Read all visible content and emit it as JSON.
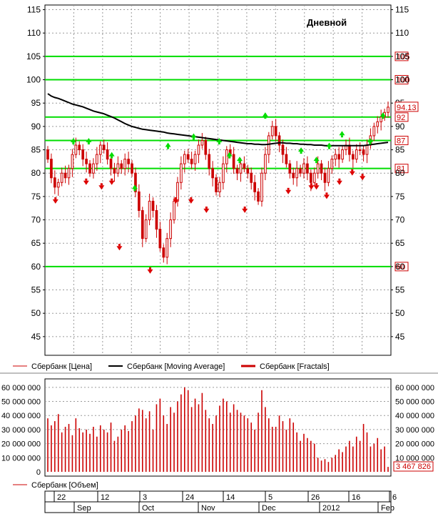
{
  "chart_data": [
    {
      "type": "candlestick",
      "title": "Дневной",
      "ylim": [
        41,
        116
      ],
      "yticks": [
        45,
        50,
        55,
        60,
        65,
        70,
        75,
        80,
        85,
        90,
        95,
        100,
        105,
        110,
        115
      ],
      "last_price": 94.13,
      "last_price_label": "94.13",
      "levels": [
        {
          "value": 105,
          "label": "105"
        },
        {
          "value": 100,
          "label": "100"
        },
        {
          "value": 92,
          "label": "92"
        },
        {
          "value": 87,
          "label": "87"
        },
        {
          "value": 81,
          "label": "81"
        },
        {
          "value": 60,
          "label": "60"
        }
      ],
      "close": [
        83,
        79,
        77,
        78,
        80,
        79,
        81,
        84,
        86,
        85,
        83,
        82,
        80,
        82,
        84,
        86,
        85,
        83,
        81,
        80,
        82,
        81,
        83,
        82,
        80,
        76,
        72,
        66,
        70,
        74,
        72,
        68,
        64,
        62,
        66,
        70,
        74,
        78,
        82,
        84,
        83,
        82,
        84,
        86,
        87,
        84,
        81,
        79,
        76,
        78,
        82,
        85,
        84,
        81,
        80,
        82,
        81,
        80,
        78,
        76,
        74,
        80,
        84,
        88,
        90,
        88,
        86,
        84,
        82,
        80,
        79,
        81,
        80,
        82,
        80,
        78,
        80,
        82,
        80,
        78,
        81,
        83,
        84,
        83,
        85,
        86,
        84,
        83,
        85,
        85,
        84,
        86,
        88,
        90,
        91,
        92,
        93,
        94.13
      ],
      "ma": [
        97,
        96.5,
        96.2,
        96,
        95.7,
        95.4,
        95.1,
        94.8,
        94.6,
        94.4,
        94.2,
        93.9,
        93.6,
        93.3,
        93.1,
        92.9,
        92.7,
        92.4,
        92.1,
        91.8,
        91.4,
        91,
        90.6,
        90.3,
        90,
        89.8,
        89.6,
        89.4,
        89.3,
        89.2,
        89.1,
        89,
        88.9,
        88.8,
        88.6,
        88.5,
        88.4,
        88.3,
        88.2,
        88.1,
        88,
        87.9,
        87.8,
        87.7,
        87.6,
        87.5,
        87.4,
        87.3,
        87.2,
        87.1,
        87,
        86.9,
        86.8,
        86.7,
        86.6,
        86.5,
        86.4,
        86.3,
        86.3,
        86.2,
        86.2,
        86.1,
        86.1,
        86.2,
        86.3,
        86.4,
        86.5,
        86.5,
        86.4,
        86.4,
        86.3,
        86.3,
        86.2,
        86.2,
        86.1,
        86.1,
        86.0,
        86.0,
        86.0,
        85.9,
        85.9,
        85.9,
        85.9,
        85.9,
        85.9,
        85.9,
        85.9,
        85.9,
        85.9,
        85.9,
        85.9,
        86.0,
        86.1,
        86.2,
        86.3,
        86.4,
        86.5,
        86.6
      ],
      "fractals_up": [
        [
          10,
          86
        ],
        [
          16,
          86
        ],
        [
          25,
          83
        ],
        [
          34,
          76
        ],
        [
          47,
          85
        ],
        [
          57,
          87
        ],
        [
          67,
          86
        ],
        [
          71,
          83
        ],
        [
          75,
          82
        ],
        [
          85,
          91.5
        ],
        [
          99,
          84
        ],
        [
          105,
          82
        ],
        [
          110,
          85
        ],
        [
          115,
          87.5
        ],
        [
          126,
          86
        ],
        [
          131,
          91.5
        ]
      ],
      "fractals_down": [
        [
          3,
          75
        ],
        [
          15,
          79
        ],
        [
          21,
          78
        ],
        [
          25,
          79
        ],
        [
          28,
          65
        ],
        [
          40,
          60
        ],
        [
          50,
          75
        ],
        [
          56,
          75
        ],
        [
          62,
          73
        ],
        [
          77,
          73
        ],
        [
          94,
          77
        ],
        [
          103,
          78
        ],
        [
          105,
          78
        ],
        [
          109,
          76
        ],
        [
          114,
          79
        ],
        [
          119,
          81
        ],
        [
          123,
          80
        ]
      ],
      "legend": [
        {
          "name": "Сбербанк [Цена]",
          "color": "#cc0000"
        },
        {
          "name": "Сбербанк [Moving Average]",
          "color": "#000000"
        },
        {
          "name": "Сбербанк [Fractals]",
          "color": "#cc0000"
        }
      ]
    },
    {
      "type": "bar",
      "ylim": [
        0,
        65000000
      ],
      "ytick_labels": [
        "0",
        "10 000 000",
        "20 000 000",
        "30 000 000",
        "40 000 000",
        "50 000 000",
        "60 000 000"
      ],
      "ytick_values": [
        0,
        10000000,
        20000000,
        30000000,
        40000000,
        50000000,
        60000000
      ],
      "last_volume_label": "3 467 826",
      "volume_millions": [
        38,
        33,
        36,
        41,
        28,
        32,
        34,
        26,
        38,
        31,
        28,
        30,
        27,
        32,
        25,
        33,
        30,
        28,
        35,
        22,
        25,
        30,
        33,
        29,
        36,
        40,
        45,
        44,
        38,
        43,
        30,
        48,
        52,
        40,
        34,
        46,
        42,
        50,
        55,
        60,
        58,
        46,
        52,
        48,
        56,
        44,
        38,
        34,
        40,
        47,
        52,
        50,
        42,
        48,
        44,
        42,
        40,
        38,
        35,
        30,
        42,
        58,
        46,
        38,
        32,
        32,
        40,
        36,
        30,
        38,
        35,
        28,
        22,
        27,
        24,
        22,
        20,
        10,
        8,
        9,
        7,
        10,
        12,
        16,
        14,
        18,
        22,
        18,
        25,
        22,
        34,
        28,
        18,
        20,
        24,
        16,
        18,
        3.5
      ],
      "legend": [
        {
          "name": "Сбербанк [Объем]",
          "color": "#cc0000"
        }
      ]
    },
    {
      "type": "time-axis",
      "day_labels": [
        "22",
        "12",
        "3",
        "24",
        "14",
        "5",
        "26",
        "16",
        "6"
      ],
      "month_labels": [
        "Sep",
        "Oct",
        "Nov",
        "Dec",
        "2012",
        "Feb"
      ]
    }
  ]
}
